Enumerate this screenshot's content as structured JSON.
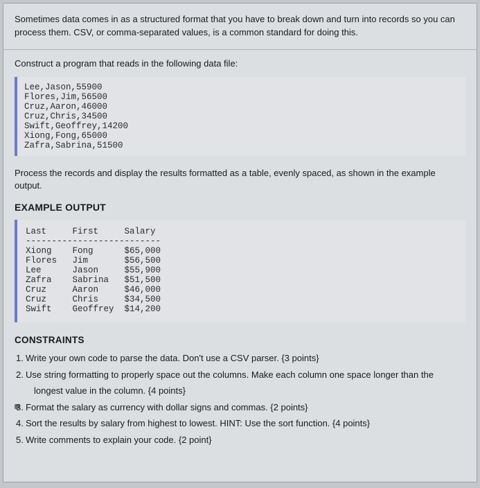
{
  "intro": "Sometimes data comes in as a structured format that you have to break down and turn into records so you can process them. CSV, or comma-separated values, is a common standard for doing this.",
  "prompt": "Construct a program that reads in the following data file:",
  "datafile": "Lee,Jason,55900\nFlores,Jim,56500\nCruz,Aaron,46000\nCruz,Chris,34500\nSwift,Geoffrey,14200\nXiong,Fong,65000\nZafra,Sabrina,51500",
  "process": "Process the records and display the results formatted as a table, evenly spaced, as shown in the example output.",
  "example_heading": "EXAMPLE OUTPUT",
  "output_header": "Last     First     Salary",
  "output_sep": "--------------------------",
  "output_rows": "Xiong    Fong      $65,000\nFlores   Jim       $56,500\nLee      Jason     $55,900\nZafra    Sabrina   $51,500\nCruz     Aaron     $46,000\nCruz     Chris     $34,500\nSwift    Geoffrey  $14,200",
  "constraints_heading": "CONSTRAINTS",
  "constraints": {
    "c1": "Write your own code to parse the data. Don't use a CSV parser. {3 points}",
    "c2a": "Use string formatting to properly space out the columns. Make each column one space longer than the",
    "c2b": "longest value in the column. {4 points}",
    "c3": "Format the salary as currency with dollar signs and commas. {2 points}",
    "c4": "Sort the results by salary from highest to lowest. HINT: Use the sort function. {4 points}",
    "c5": "Write comments to explain your code. {2 point}"
  },
  "colors": {
    "accent": "#6b7cc7",
    "page_bg": "#dcdfe2",
    "code_bg": "#e1e3e6"
  }
}
